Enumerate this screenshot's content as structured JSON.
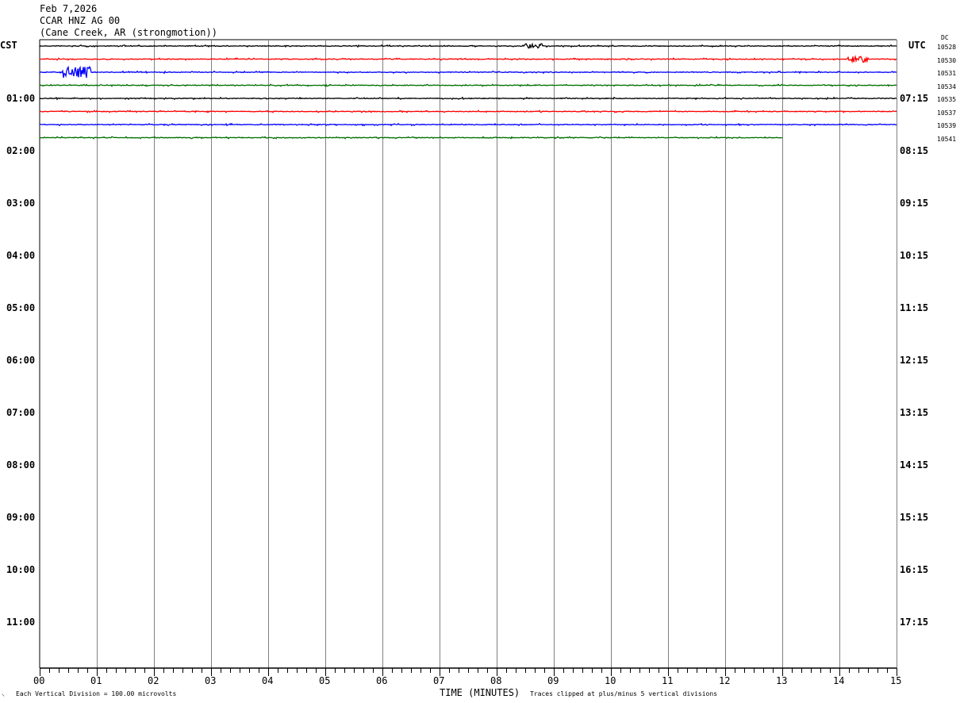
{
  "header": {
    "date": "Feb 7,2026",
    "station": "CCAR HNZ AG 00",
    "location": "(Cane Creek, AR (strongmotion))"
  },
  "chart_data": {
    "type": "line",
    "xlabel": "TIME (MINUTES)",
    "xlim": [
      0,
      15
    ],
    "x_ticks": [
      "00",
      "01",
      "02",
      "03",
      "04",
      "05",
      "06",
      "07",
      "08",
      "09",
      "10",
      "11",
      "12",
      "13",
      "14",
      "15"
    ],
    "left_timezone": "CST",
    "right_timezone": "UTC",
    "dc_label": "DC",
    "left_hour_labels": [
      "01:00",
      "02:00",
      "03:00",
      "04:00",
      "05:00",
      "06:00",
      "07:00",
      "08:00",
      "09:00",
      "10:00",
      "11:00"
    ],
    "right_hour_labels": [
      "07:15",
      "08:15",
      "09:15",
      "10:15",
      "11:15",
      "12:15",
      "13:15",
      "14:15",
      "15:15",
      "16:15",
      "17:15"
    ],
    "rows_per_hour": 4,
    "trace_colors": [
      "#000000",
      "#ff0000",
      "#0000ff",
      "#007000"
    ],
    "traces": [
      {
        "dc": "10528",
        "end_minute": 15,
        "event": {
          "start": 8.5,
          "end": 8.8,
          "amplitude": 3
        }
      },
      {
        "dc": "10530",
        "end_minute": 15,
        "event": {
          "start": 14.15,
          "end": 14.5,
          "amplitude": 4
        }
      },
      {
        "dc": "10531",
        "end_minute": 15,
        "event": {
          "start": 0.4,
          "end": 0.9,
          "amplitude": 7
        }
      },
      {
        "dc": "10534",
        "end_minute": 15
      },
      {
        "dc": "10535",
        "end_minute": 15
      },
      {
        "dc": "10537",
        "end_minute": 15
      },
      {
        "dc": "10539",
        "end_minute": 15
      },
      {
        "dc": "10541",
        "end_minute": 13
      }
    ],
    "footer_left": "Each Vertical Division =  100.00 microvolts",
    "footer_right": "Traces clipped at plus/minus 5 vertical divisions"
  }
}
